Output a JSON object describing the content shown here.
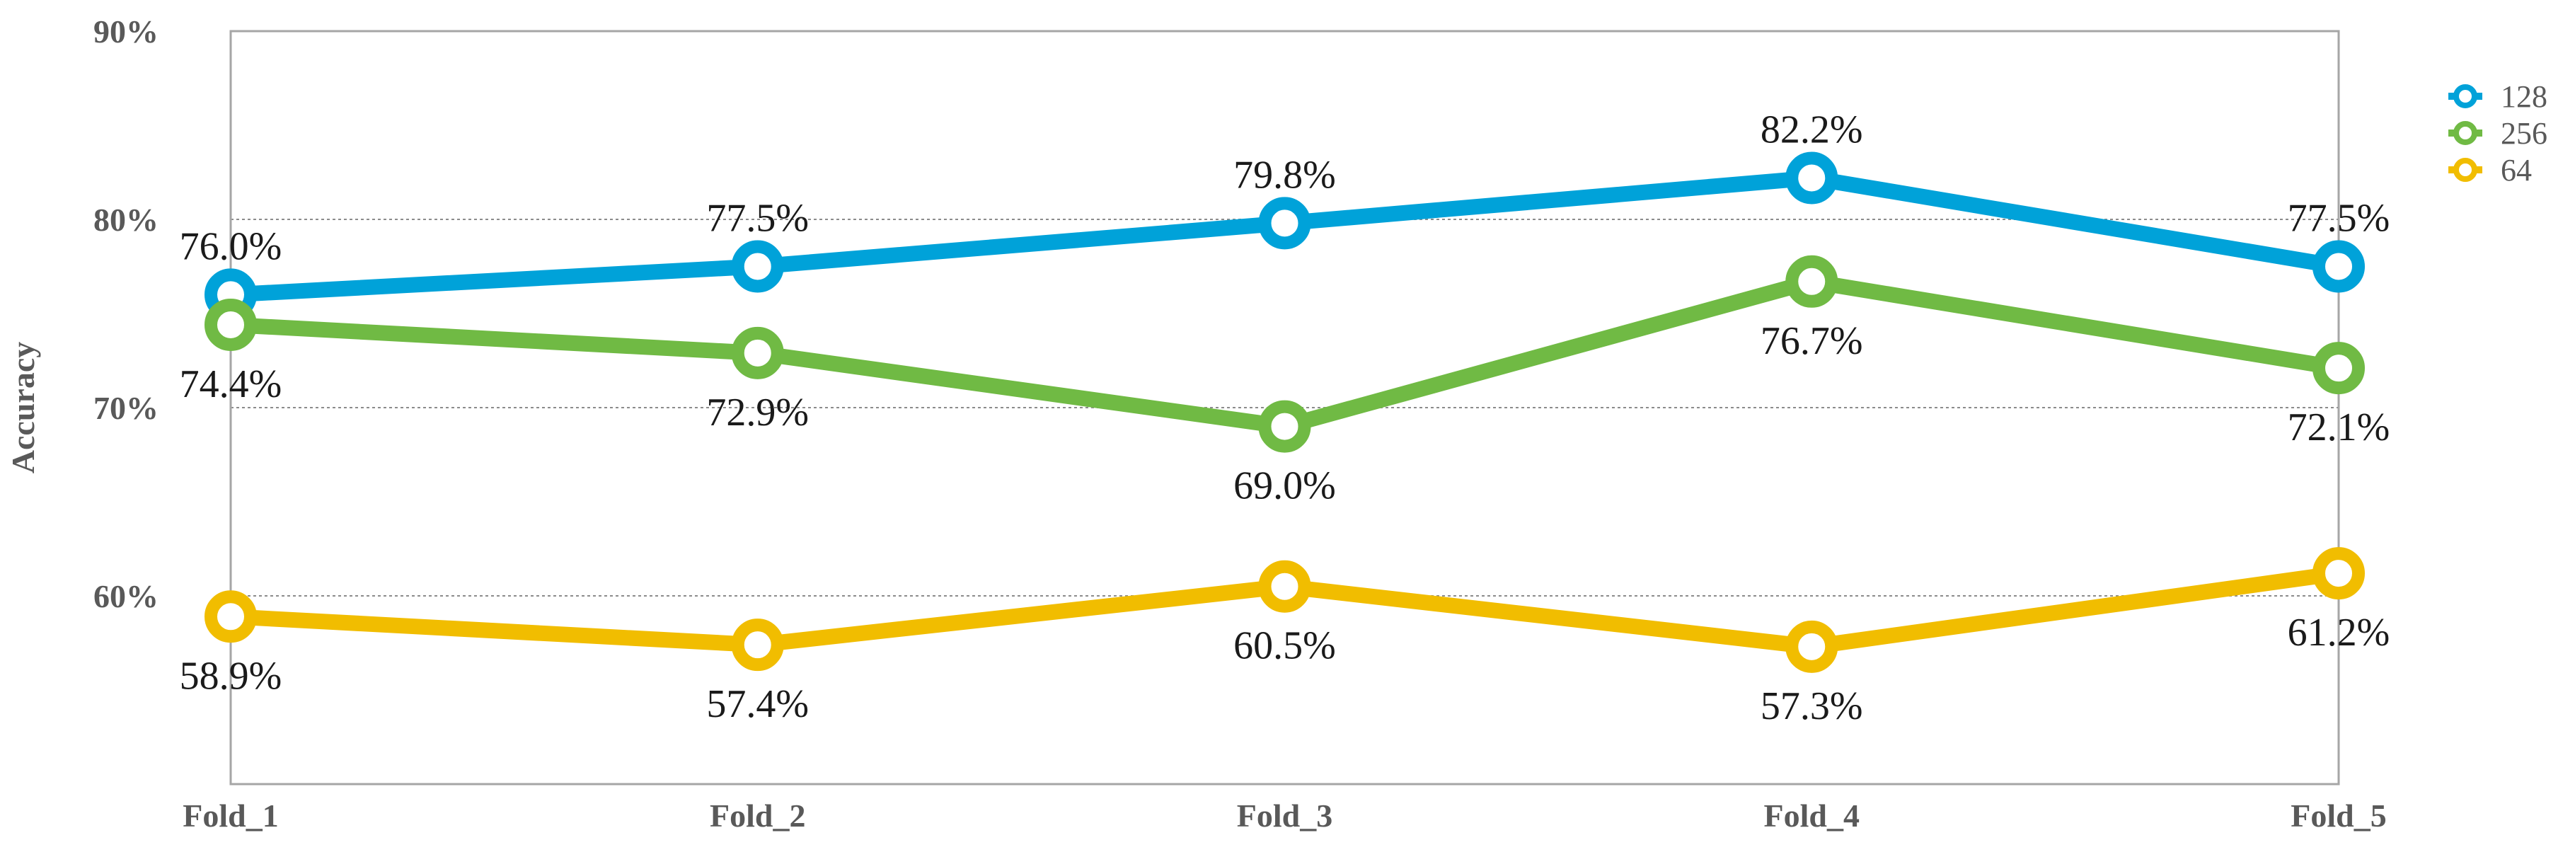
{
  "chart_data": {
    "type": "line",
    "categories": [
      "Fold_1",
      "Fold_2",
      "Fold_3",
      "Fold_4",
      "Fold_5"
    ],
    "series": [
      {
        "name": "128",
        "color": "#00A2D9",
        "values": [
          76.0,
          77.5,
          79.8,
          82.2,
          77.5
        ],
        "labels": [
          "76.0%",
          "77.5%",
          "79.8%",
          "82.2%",
          "77.5%"
        ]
      },
      {
        "name": "256",
        "color": "#70BA44",
        "values": [
          74.4,
          72.9,
          69.0,
          76.7,
          72.1
        ],
        "labels": [
          "74.4%",
          "72.9%",
          "69.0%",
          "76.7%",
          "72.1%"
        ]
      },
      {
        "name": "64",
        "color": "#F1BD00",
        "values": [
          58.9,
          57.4,
          60.5,
          57.3,
          61.2
        ],
        "labels": [
          "58.9%",
          "57.4%",
          "60.5%",
          "57.3%",
          "61.2%"
        ]
      }
    ],
    "ylabel": "Accuracy",
    "xlabel": "",
    "ylim": [
      50,
      90
    ],
    "yticks": [
      60,
      70,
      80,
      90
    ],
    "ytick_labels": [
      "60%",
      "70%",
      "80%",
      "90%"
    ],
    "grid": true,
    "legend_position": "top-right"
  }
}
